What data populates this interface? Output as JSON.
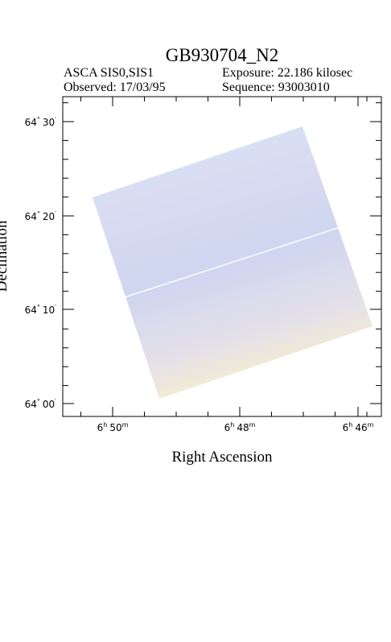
{
  "header": {
    "title": "GB930704_N2",
    "instrument": "ASCA SIS0,SIS1",
    "exposure": "Exposure: 22.186 kilosec",
    "observed": "Observed: 17/03/95",
    "sequence": "Sequence: 93003010"
  },
  "axes": {
    "x_label": "Right Ascension",
    "y_label": "Declination",
    "x_ticks": [
      [
        "6",
        "h",
        "50",
        "m"
      ],
      [
        "6",
        "h",
        "48",
        "m"
      ],
      [
        "6",
        "h",
        "46",
        "m"
      ]
    ],
    "y_ticks": [
      [
        "64",
        "°",
        "30",
        "′"
      ],
      [
        "64",
        "°",
        "20",
        "′"
      ],
      [
        "64",
        "°",
        "10",
        "′"
      ],
      [
        "64",
        "°",
        "00",
        "′"
      ]
    ]
  }
}
